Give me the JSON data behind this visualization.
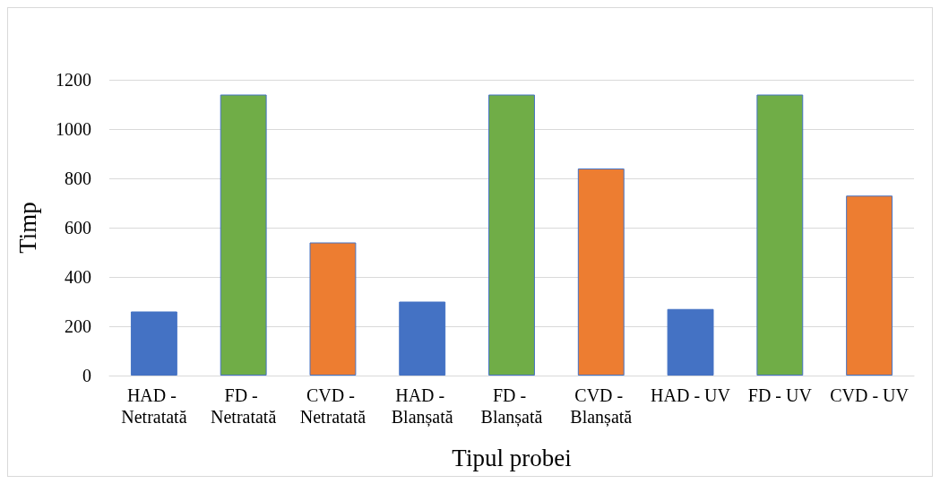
{
  "chart_data": {
    "type": "bar",
    "xlabel": "Tipul probei",
    "ylabel": "Timp",
    "categories": [
      "HAD - Netratată",
      "FD - Netratată",
      "CVD - Netratată",
      "HAD - Blanșată",
      "FD - Blanșată",
      "CVD - Blanșată",
      "HAD - UV",
      "FD - UV",
      "CVD - UV"
    ],
    "values": [
      260,
      1140,
      540,
      300,
      1140,
      840,
      270,
      1140,
      730
    ],
    "colors": [
      "#4472c4",
      "#70ad47",
      "#ed7d31",
      "#4472c4",
      "#70ad47",
      "#ed7d31",
      "#4472c4",
      "#70ad47",
      "#ed7d31"
    ],
    "ylim": [
      0,
      1200
    ],
    "yticks": [
      0,
      200,
      400,
      600,
      800,
      1000,
      1200
    ],
    "grid": "y"
  }
}
